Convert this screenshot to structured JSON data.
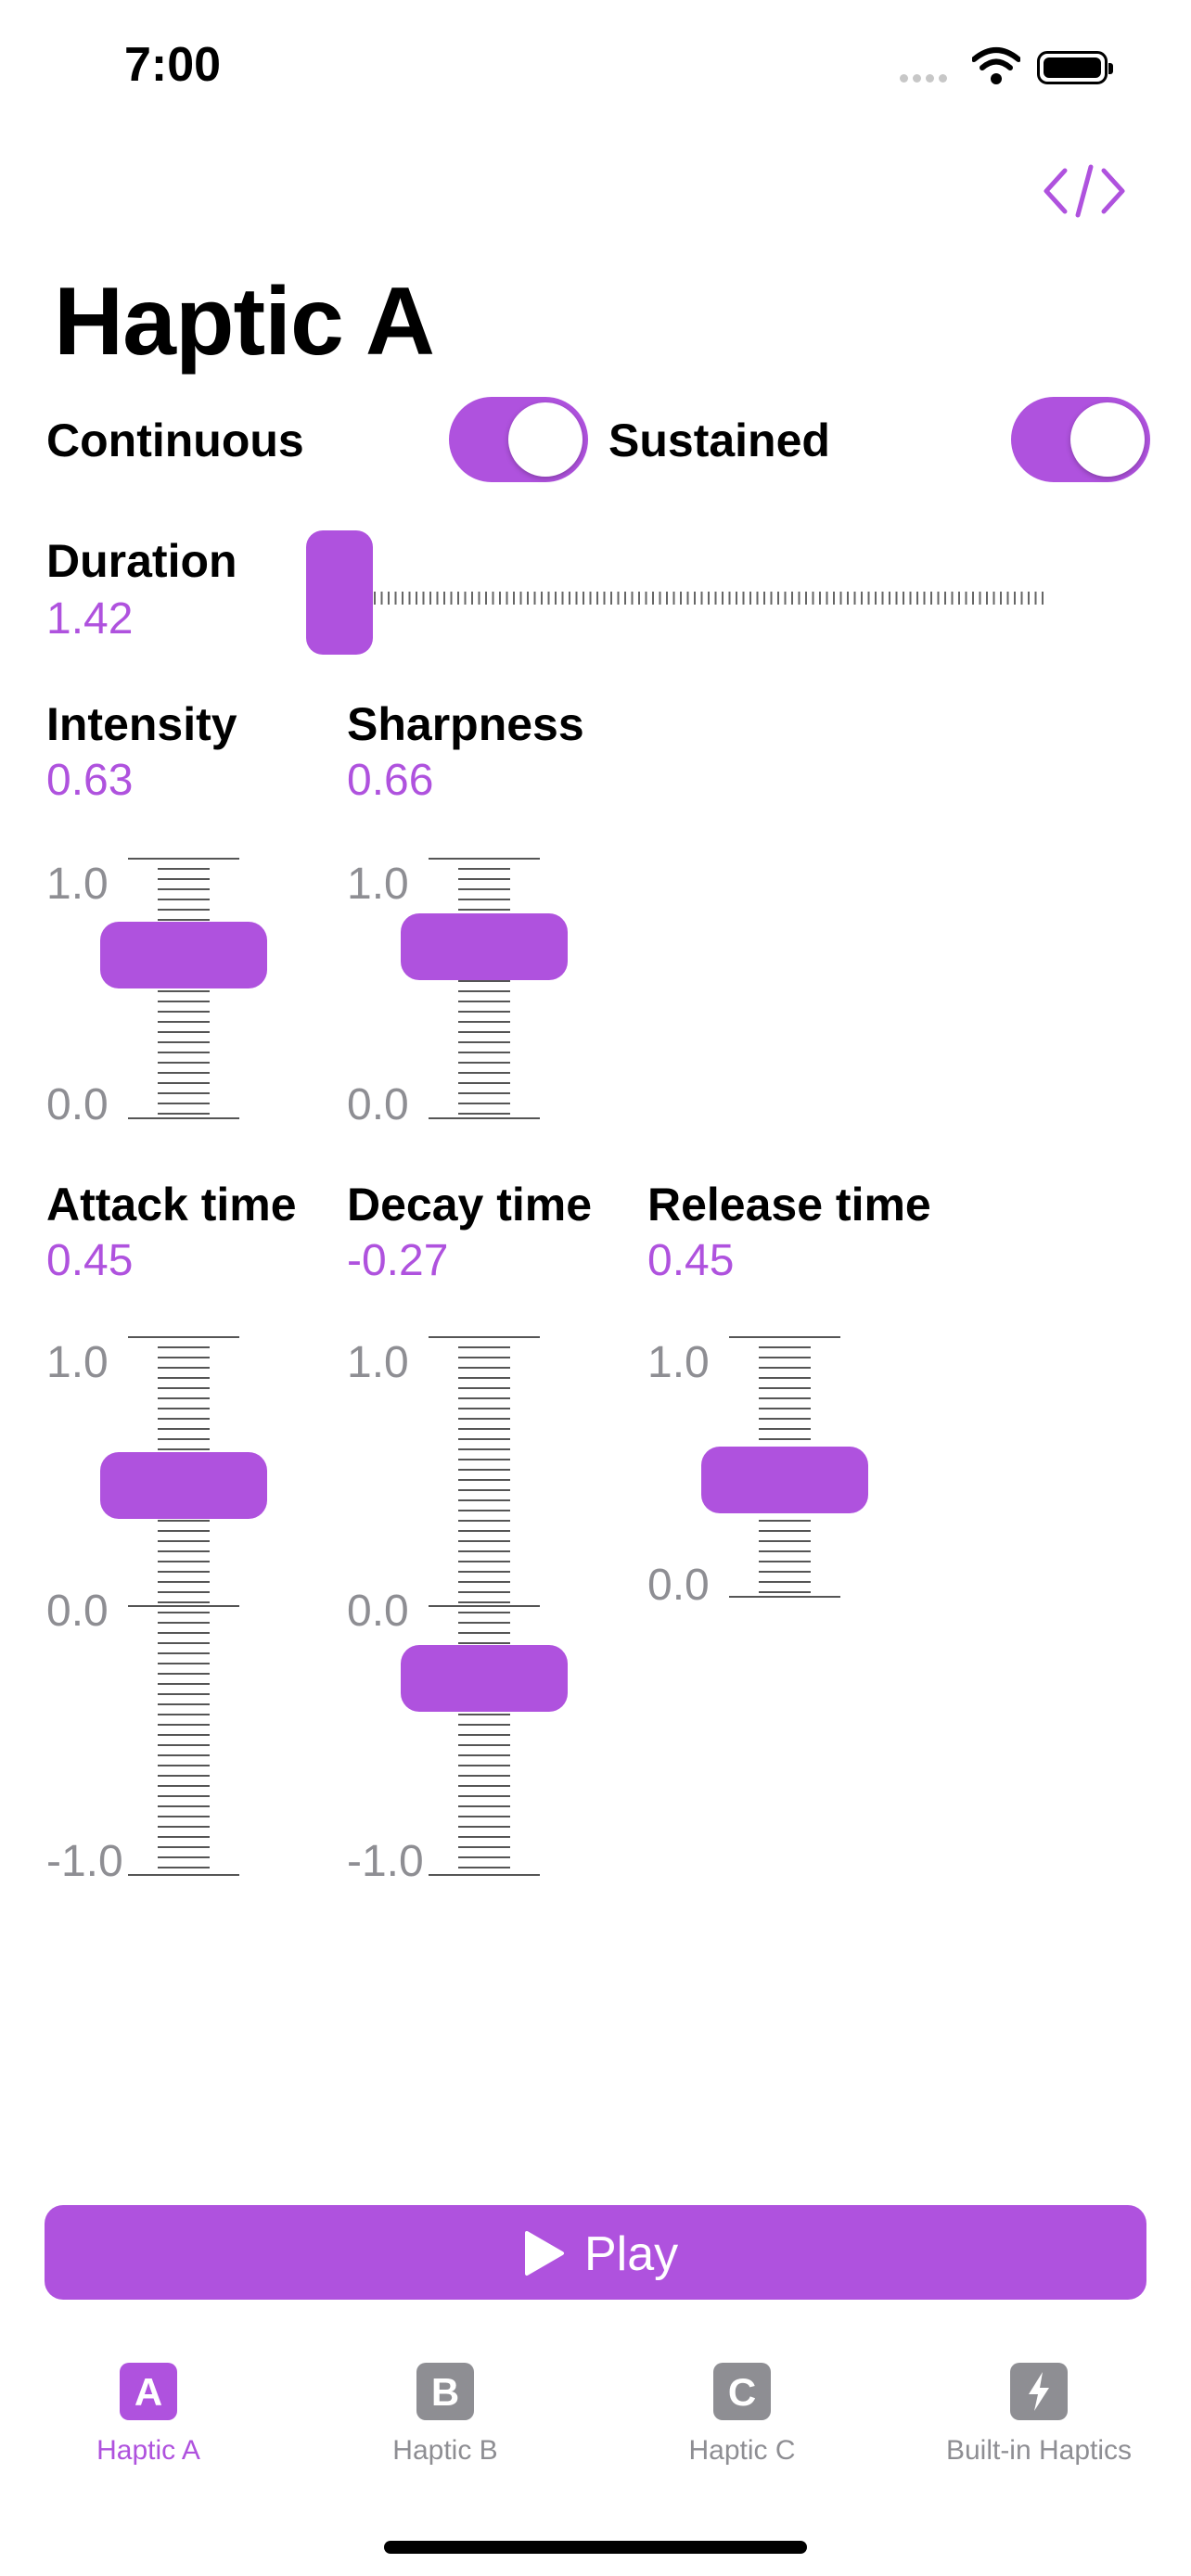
{
  "status_bar": {
    "time": "7:00"
  },
  "header": {
    "title": "Haptic A"
  },
  "toggles": [
    {
      "label": "Continuous",
      "on": true
    },
    {
      "label": "Sustained",
      "on": true
    }
  ],
  "duration": {
    "label": "Duration",
    "value": "1.42"
  },
  "sliders": {
    "intensity": {
      "label": "Intensity",
      "value": "0.63",
      "max_label": "1.0",
      "min_label": "0.0"
    },
    "sharpness": {
      "label": "Sharpness",
      "value": "0.66",
      "max_label": "1.0",
      "min_label": "0.0"
    },
    "attack": {
      "label": "Attack time",
      "value": "0.45",
      "max_label": "1.0",
      "mid_label": "0.0",
      "min_label": "-1.0"
    },
    "decay": {
      "label": "Decay time",
      "value": "-0.27",
      "max_label": "1.0",
      "mid_label": "0.0",
      "min_label": "-1.0"
    },
    "release": {
      "label": "Release time",
      "value": "0.45",
      "max_label": "1.0",
      "min_label": "0.0"
    }
  },
  "play_button": {
    "label": "Play"
  },
  "tabs": [
    {
      "glyph": "A",
      "label": "Haptic A",
      "active": true
    },
    {
      "glyph": "B",
      "label": "Haptic B",
      "active": false
    },
    {
      "glyph": "C",
      "label": "Haptic C",
      "active": false
    },
    {
      "glyph": "",
      "label": "Built-in Haptics",
      "active": false
    }
  ],
  "colors": {
    "accent": "#af52de",
    "inactive": "#8e8e93",
    "tick": "#555555"
  },
  "icons": {
    "code": "code-brackets-icon",
    "play": "play-triangle-icon",
    "bolt": "lightning-bolt-icon"
  }
}
